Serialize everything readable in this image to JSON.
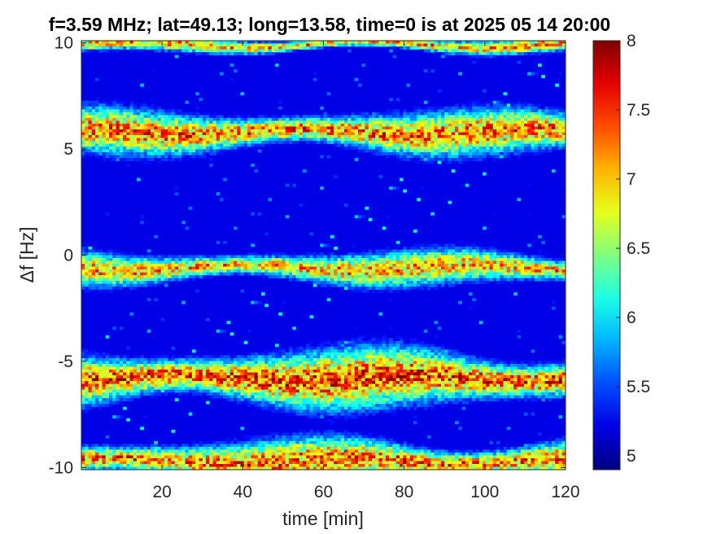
{
  "chart_data": {
    "type": "heatmap",
    "title": "f=3.59 MHz;  lat=49.13; long=13.58, time=0 is at 2025 05 14 20:00",
    "xlabel": "time [min]",
    "ylabel": "Δf [Hz]",
    "xlim": [
      0,
      120
    ],
    "ylim": [
      -10.1,
      10.1
    ],
    "x_ticks": [
      20,
      40,
      60,
      80,
      100,
      120
    ],
    "y_ticks": [
      -10,
      -5,
      0,
      5,
      10
    ],
    "colorbar": {
      "colormap": "jet",
      "clim": [
        4.9,
        8
      ],
      "ticks": [
        5,
        5.5,
        6,
        6.5,
        7,
        7.5,
        8
      ]
    },
    "background_level": 4.9,
    "bands": [
      {
        "center_hz": 9.9,
        "peak_level": 7.6,
        "width_hz": 0.3
      },
      {
        "center_hz": 5.8,
        "peak_level": 7.8,
        "width_hz": 0.9
      },
      {
        "center_hz": -0.6,
        "peak_level": 7.6,
        "width_hz": 0.7
      },
      {
        "center_hz": -5.8,
        "peak_level": 8.0,
        "width_hz": 1.2
      },
      {
        "center_hz": -9.7,
        "peak_level": 7.8,
        "width_hz": 0.9
      }
    ]
  }
}
